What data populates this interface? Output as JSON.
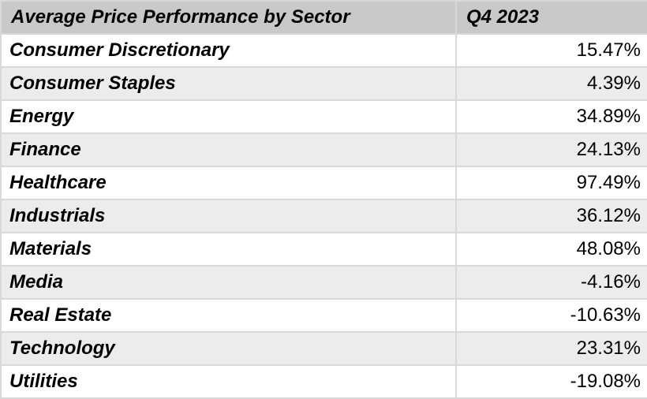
{
  "table": {
    "header": {
      "sector_label": "Average Price Performance by Sector",
      "value_label": "Q4 2023"
    },
    "rows": [
      {
        "sector": "Consumer Discretionary",
        "value": "15.47%"
      },
      {
        "sector": "Consumer Staples",
        "value": "4.39%"
      },
      {
        "sector": "Energy",
        "value": "34.89%"
      },
      {
        "sector": "Finance",
        "value": "24.13%"
      },
      {
        "sector": "Healthcare",
        "value": "97.49%"
      },
      {
        "sector": "Industrials",
        "value": "36.12%"
      },
      {
        "sector": "Materials",
        "value": "48.08%"
      },
      {
        "sector": "Media",
        "value": "-4.16%"
      },
      {
        "sector": "Real Estate",
        "value": "-10.63%"
      },
      {
        "sector": "Technology",
        "value": "23.31%"
      },
      {
        "sector": "Utilities",
        "value": "-19.08%"
      }
    ],
    "colors": {
      "header_bg": "#c9c9c9",
      "row_bg": "#ffffff",
      "row_alt_bg": "#ececec",
      "border": "#d9d9d9",
      "text": "#000000"
    }
  },
  "chart_data": {
    "type": "table",
    "title": "Average Price Performance by Sector",
    "value_column": "Q4 2023",
    "value_format": "percent",
    "categories": [
      "Consumer Discretionary",
      "Consumer Staples",
      "Energy",
      "Finance",
      "Healthcare",
      "Industrials",
      "Materials",
      "Media",
      "Real Estate",
      "Technology",
      "Utilities"
    ],
    "values": [
      15.47,
      4.39,
      34.89,
      24.13,
      97.49,
      36.12,
      48.08,
      -4.16,
      -10.63,
      23.31,
      -19.08
    ]
  }
}
